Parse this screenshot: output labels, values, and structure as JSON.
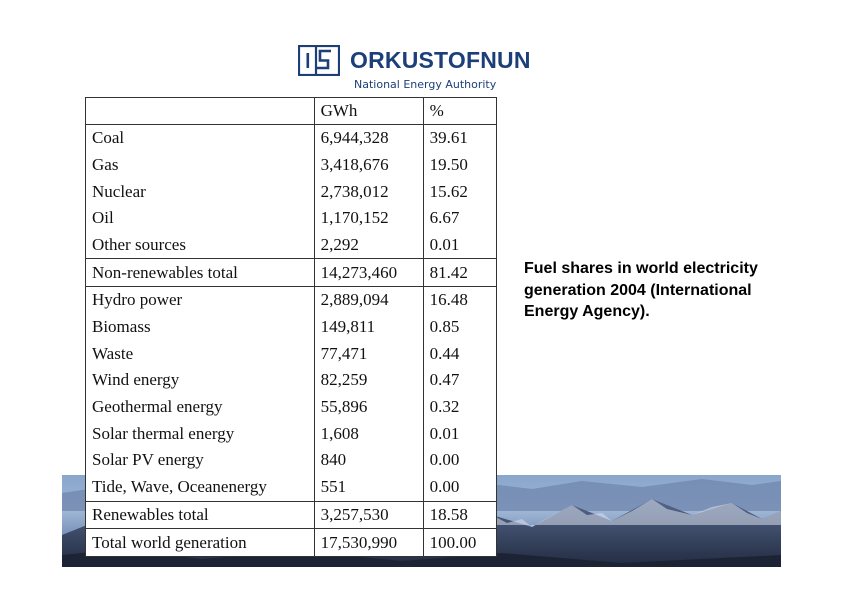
{
  "logo": {
    "name": "ORKUSTOFNUN",
    "tagline": "National Energy Authority"
  },
  "table": {
    "headers": [
      "",
      "GWh",
      "%"
    ],
    "groups": [
      {
        "rows": [
          {
            "source": "Coal",
            "gwh": "6,944,328",
            "pct": "39.61"
          },
          {
            "source": "Gas",
            "gwh": "3,418,676",
            "pct": "19.50"
          },
          {
            "source": "Nuclear",
            "gwh": "2,738,012",
            "pct": "15.62"
          },
          {
            "source": "Oil",
            "gwh": "1,170,152",
            "pct": "6.67"
          },
          {
            "source": "Other sources",
            "gwh": "2,292",
            "pct": "0.01"
          }
        ],
        "total": {
          "source": "Non-renewables total",
          "gwh": "14,273,460",
          "pct": "81.42"
        }
      },
      {
        "rows": [
          {
            "source": "Hydro power",
            "gwh": "2,889,094",
            "pct": "16.48"
          },
          {
            "source": "Biomass",
            "gwh": "149,811",
            "pct": "0.85"
          },
          {
            "source": "Waste",
            "gwh": "77,471",
            "pct": "0.44"
          },
          {
            "source": "Wind energy",
            "gwh": "82,259",
            "pct": "0.47"
          },
          {
            "source": "Geothermal energy",
            "gwh": "55,896",
            "pct": "0.32"
          },
          {
            "source": "Solar thermal energy",
            "gwh": "1,608",
            "pct": "0.01"
          },
          {
            "source": "Solar PV energy",
            "gwh": "840",
            "pct": "0.00"
          },
          {
            "source": "Tide, Wave, Oceanenergy",
            "gwh": "551",
            "pct": "0.00"
          }
        ],
        "total": {
          "source": "Renewables total",
          "gwh": "3,257,530",
          "pct": "18.58"
        }
      }
    ],
    "grand_total": {
      "source": "Total world generation",
      "gwh": "17,530,990",
      "pct": "100.00"
    }
  },
  "caption": "Fuel shares in world electricity generation 2004 (International Energy Agency).",
  "colors": {
    "brand": "#1c3f7a",
    "sky": "#7f9cc4",
    "mountain_dark": "#2a3550"
  }
}
